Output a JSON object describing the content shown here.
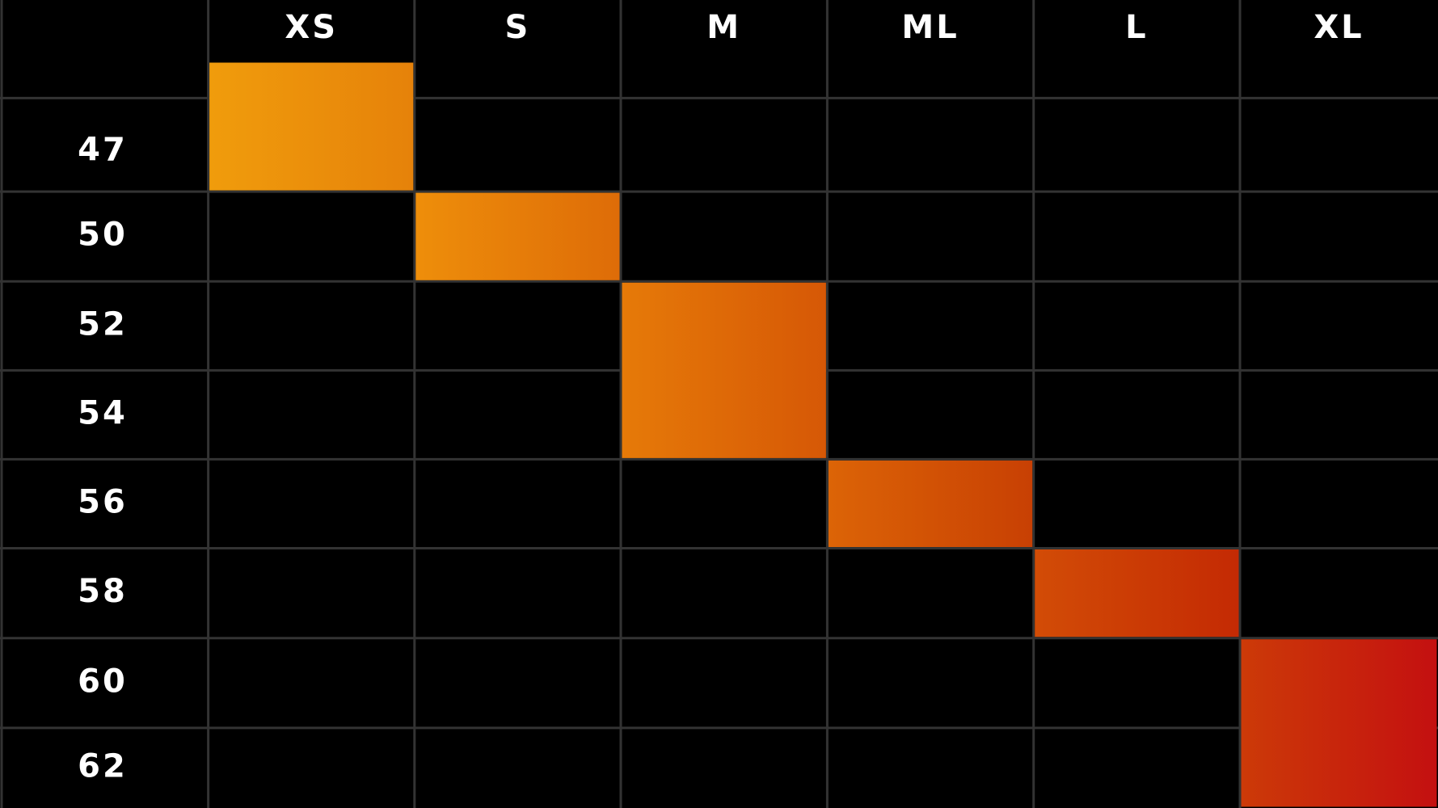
{
  "columns": [
    "XS",
    "S",
    "M",
    "ML",
    "L",
    "XL"
  ],
  "rows": [
    "47",
    "50",
    "52",
    "54",
    "56",
    "58",
    "60",
    "62"
  ]
}
